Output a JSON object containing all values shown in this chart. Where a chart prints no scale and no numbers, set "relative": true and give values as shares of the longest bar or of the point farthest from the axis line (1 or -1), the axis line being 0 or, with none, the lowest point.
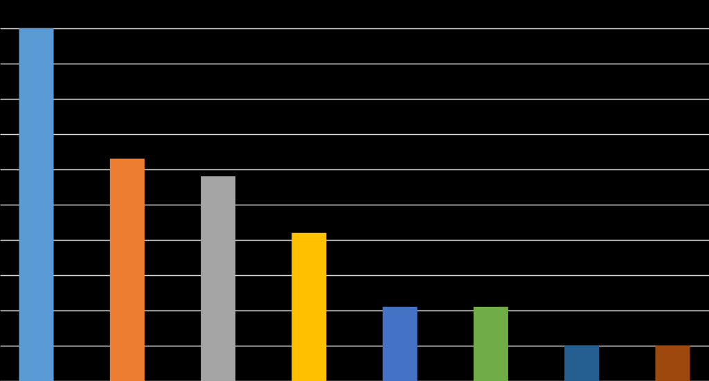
{
  "chart_data": {
    "type": "bar",
    "relative": true,
    "grid": "y",
    "tick_labels": false,
    "categories": [
      null,
      null,
      null,
      null,
      null,
      null,
      null,
      null
    ],
    "values": [
      1,
      0.63,
      0.58,
      0.42,
      0.21,
      0.21,
      0.1,
      0.1
    ],
    "colors": [
      "#5b9bd5",
      "#ed7d31",
      "#a5a5a5",
      "#ffc000",
      "#4472c4",
      "#70ad47",
      "#255e91",
      "#9e480e"
    ]
  }
}
